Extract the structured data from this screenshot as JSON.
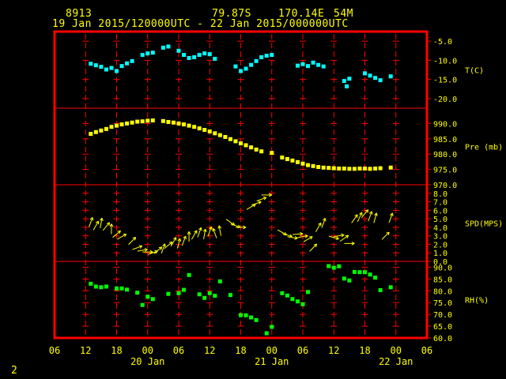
{
  "header": {
    "station_id": "8913",
    "latitude": "79.87S",
    "longitude": "170.14E",
    "elevation": "54M",
    "period": "19 Jan 2015/120000UTC - 22 Jan 2015/000000UTC"
  },
  "page_number": "2",
  "colors": {
    "background": "#000000",
    "frame": "#ff0000",
    "grid": "#ff0000",
    "text": "#ffff00",
    "temperature": "#00ffff",
    "pressure": "#ffff00",
    "wind": "#ffff00",
    "humidity": "#00ff00"
  },
  "chart_data": {
    "type": "meteogram",
    "x": {
      "unit": "hours since 19 Jan 2015 00 UTC",
      "range": [
        6,
        78
      ],
      "tick_hours": [
        6,
        12,
        18,
        24,
        30,
        36,
        42,
        48,
        54,
        60,
        66,
        72,
        78
      ],
      "tick_labels": [
        "06",
        "12",
        "18",
        "00",
        "06",
        "12",
        "18",
        "00",
        "06",
        "12",
        "18",
        "00",
        "06"
      ],
      "day_labels": [
        {
          "hour": 24,
          "text": "20 Jan"
        },
        {
          "hour": 48,
          "text": "21 Jan"
        },
        {
          "hour": 72,
          "text": "22 Jan"
        }
      ]
    },
    "panels": [
      {
        "key": "temp",
        "label": "T(C)",
        "type": "scatter",
        "color": "#00ffff",
        "ylim": [
          -22.5,
          -2.5
        ],
        "ticks": [
          -5,
          -10,
          -15,
          -20
        ],
        "tick_labels": [
          "-5.0",
          "-10.0",
          "-15.0",
          "-20.0"
        ],
        "points": [
          [
            13,
            -10.9
          ],
          [
            14,
            -11.3
          ],
          [
            15,
            -11.7
          ],
          [
            16,
            -12.4
          ],
          [
            17,
            -12.0
          ],
          [
            18,
            -12.8
          ],
          [
            19,
            -11.5
          ],
          [
            20,
            -10.8
          ],
          [
            21,
            -10.2
          ],
          [
            23,
            -8.6
          ],
          [
            24,
            -8.2
          ],
          [
            25,
            -8.0
          ],
          [
            27,
            -6.7
          ],
          [
            28,
            -6.4
          ],
          [
            30,
            -7.5
          ],
          [
            31,
            -8.6
          ],
          [
            32,
            -9.4
          ],
          [
            33,
            -9.2
          ],
          [
            34,
            -8.6
          ],
          [
            35,
            -8.2
          ],
          [
            36,
            -8.4
          ],
          [
            37,
            -9.6
          ],
          [
            41,
            -11.6
          ],
          [
            42,
            -12.8
          ],
          [
            43,
            -12.2
          ],
          [
            44,
            -11.2
          ],
          [
            45,
            -10.2
          ],
          [
            46,
            -9.2
          ],
          [
            47,
            -8.8
          ],
          [
            48,
            -8.6
          ],
          [
            53,
            -11.4
          ],
          [
            54,
            -11.0
          ],
          [
            55,
            -11.5
          ],
          [
            56,
            -10.6
          ],
          [
            57,
            -11.2
          ],
          [
            58,
            -11.6
          ],
          [
            62,
            -15.4
          ],
          [
            62.5,
            -16.8
          ],
          [
            63,
            -14.8
          ],
          [
            66,
            -13.4
          ],
          [
            67,
            -14.0
          ],
          [
            68,
            -14.6
          ],
          [
            69,
            -15.2
          ],
          [
            71,
            -14.2
          ]
        ]
      },
      {
        "key": "pres",
        "label": "Pre (mb)",
        "type": "scatter",
        "color": "#ffff00",
        "ylim": [
          970,
          995
        ],
        "ticks": [
          970,
          975,
          980,
          985,
          990
        ],
        "tick_labels": [
          "970.0",
          "975.0",
          "980.0",
          "985.0",
          "990.0"
        ],
        "points": [
          [
            13,
            986.6
          ],
          [
            14,
            987.2
          ],
          [
            15,
            987.7
          ],
          [
            16,
            988.2
          ],
          [
            17,
            988.9
          ],
          [
            18,
            989.3
          ],
          [
            19,
            989.7
          ],
          [
            20,
            990.0
          ],
          [
            21,
            990.3
          ],
          [
            22,
            990.6
          ],
          [
            23,
            990.7
          ],
          [
            24,
            990.9
          ],
          [
            25,
            991.0
          ],
          [
            27,
            990.8
          ],
          [
            28,
            990.5
          ],
          [
            29,
            990.3
          ],
          [
            30,
            990.0
          ],
          [
            31,
            989.7
          ],
          [
            32,
            989.3
          ],
          [
            33,
            988.9
          ],
          [
            34,
            988.4
          ],
          [
            35,
            987.9
          ],
          [
            36,
            987.4
          ],
          [
            37,
            986.8
          ],
          [
            38,
            986.2
          ],
          [
            39,
            985.6
          ],
          [
            40,
            984.9
          ],
          [
            41,
            984.2
          ],
          [
            42,
            983.5
          ],
          [
            43,
            982.9
          ],
          [
            44,
            982.2
          ],
          [
            45,
            981.5
          ],
          [
            46,
            980.9
          ],
          [
            48,
            980.4
          ],
          [
            50,
            978.9
          ],
          [
            51,
            978.4
          ],
          [
            52,
            977.9
          ],
          [
            53,
            977.4
          ],
          [
            54,
            976.9
          ],
          [
            55,
            976.4
          ],
          [
            56,
            976.1
          ],
          [
            57,
            975.8
          ],
          [
            58,
            975.6
          ],
          [
            59,
            975.5
          ],
          [
            60,
            975.4
          ],
          [
            61,
            975.3
          ],
          [
            62,
            975.3
          ],
          [
            63,
            975.2
          ],
          [
            64,
            975.2
          ],
          [
            65,
            975.3
          ],
          [
            66,
            975.3
          ],
          [
            67,
            975.2
          ],
          [
            68,
            975.3
          ],
          [
            69,
            975.4
          ],
          [
            71,
            975.6
          ]
        ]
      },
      {
        "key": "wind",
        "label": "SPD(MPS)",
        "type": "wind-arrows",
        "color": "#ffff00",
        "ylim": [
          0,
          9
        ],
        "ticks": [
          0,
          1,
          2,
          3,
          4,
          5,
          6,
          7,
          8
        ],
        "tick_labels": [
          "0.0",
          "1.0",
          "2.0",
          "3.0",
          "4.0",
          "5.0",
          "6.0",
          "7.0",
          "8.0"
        ],
        "points": [
          [
            13,
            4.6,
            200
          ],
          [
            14,
            4.2,
            210
          ],
          [
            15,
            4.5,
            190
          ],
          [
            16,
            4.1,
            220
          ],
          [
            17,
            3.8,
            180
          ],
          [
            18,
            3.2,
            230
          ],
          [
            19,
            2.9,
            240
          ],
          [
            21,
            2.4,
            225
          ],
          [
            22,
            1.6,
            250
          ],
          [
            23,
            1.3,
            260
          ],
          [
            24,
            1.1,
            270
          ],
          [
            25,
            1.0,
            250
          ],
          [
            26,
            1.3,
            230
          ],
          [
            27,
            1.5,
            200
          ],
          [
            28,
            1.9,
            230
          ],
          [
            29,
            2.3,
            210
          ],
          [
            30,
            2.1,
            195
          ],
          [
            31,
            2.4,
            200
          ],
          [
            32,
            2.9,
            180
          ],
          [
            33,
            3.1,
            210
          ],
          [
            34,
            3.4,
            200
          ],
          [
            35,
            3.2,
            190
          ],
          [
            36,
            3.5,
            200
          ],
          [
            37,
            3.3,
            160
          ],
          [
            38,
            3.6,
            170
          ],
          [
            40,
            4.6,
            305
          ],
          [
            41,
            4.2,
            290
          ],
          [
            42,
            4.0,
            270
          ],
          [
            44,
            6.4,
            240
          ],
          [
            45,
            6.8,
            250
          ],
          [
            46,
            7.3,
            250
          ],
          [
            47,
            7.8,
            270
          ],
          [
            50,
            3.4,
            300
          ],
          [
            51,
            3.1,
            290
          ],
          [
            52,
            2.8,
            280
          ],
          [
            53,
            3.2,
            265
          ],
          [
            54,
            2.9,
            260
          ],
          [
            55,
            2.6,
            240
          ],
          [
            56,
            1.6,
            225
          ],
          [
            57,
            4.0,
            210
          ],
          [
            58,
            4.5,
            200
          ],
          [
            60,
            2.8,
            285
          ],
          [
            61,
            3.0,
            260
          ],
          [
            62,
            2.7,
            235
          ],
          [
            63,
            2.1,
            270
          ],
          [
            64,
            5.0,
            215
          ],
          [
            65,
            5.2,
            205
          ],
          [
            66,
            5.6,
            220
          ],
          [
            67,
            5.3,
            200
          ],
          [
            68,
            5.1,
            195
          ],
          [
            70,
            3.0,
            225
          ],
          [
            71,
            5.1,
            200
          ]
        ]
      },
      {
        "key": "rh",
        "label": "RH(%)",
        "type": "scatter",
        "color": "#00ff00",
        "ylim": [
          60,
          92.5
        ],
        "ticks": [
          60,
          65,
          70,
          75,
          80,
          85,
          90
        ],
        "tick_labels": [
          "60.0",
          "65.0",
          "70.0",
          "75.0",
          "80.0",
          "85.0",
          "90.0"
        ],
        "points": [
          [
            13,
            83.0
          ],
          [
            14,
            81.8
          ],
          [
            15,
            81.5
          ],
          [
            16,
            81.8
          ],
          [
            18,
            81.0
          ],
          [
            19,
            81.0
          ],
          [
            20,
            80.5
          ],
          [
            22,
            79.2
          ],
          [
            23,
            74.0
          ],
          [
            24,
            77.5
          ],
          [
            25,
            76.5
          ],
          [
            28,
            78.7
          ],
          [
            30,
            79.0
          ],
          [
            31,
            80.4
          ],
          [
            32,
            86.7
          ],
          [
            34,
            78.5
          ],
          [
            35,
            77.0
          ],
          [
            36,
            79.0
          ],
          [
            37,
            77.9
          ],
          [
            38,
            84.0
          ],
          [
            40,
            78.2
          ],
          [
            42,
            69.7
          ],
          [
            43,
            69.6
          ],
          [
            44,
            68.7
          ],
          [
            45,
            67.6
          ],
          [
            47,
            62.0
          ],
          [
            48,
            64.7
          ],
          [
            50,
            79.0
          ],
          [
            51,
            78.0
          ],
          [
            52,
            76.5
          ],
          [
            53,
            75.5
          ],
          [
            54,
            74.3
          ],
          [
            55,
            79.5
          ],
          [
            59,
            90.5
          ],
          [
            60,
            89.8
          ],
          [
            61,
            90.4
          ],
          [
            62,
            85.2
          ],
          [
            63,
            84.4
          ],
          [
            64,
            88.0
          ],
          [
            65,
            87.9
          ],
          [
            66,
            87.9
          ],
          [
            67,
            86.9
          ],
          [
            68,
            85.6
          ],
          [
            69,
            80.3
          ],
          [
            71,
            81.5
          ]
        ]
      }
    ]
  }
}
